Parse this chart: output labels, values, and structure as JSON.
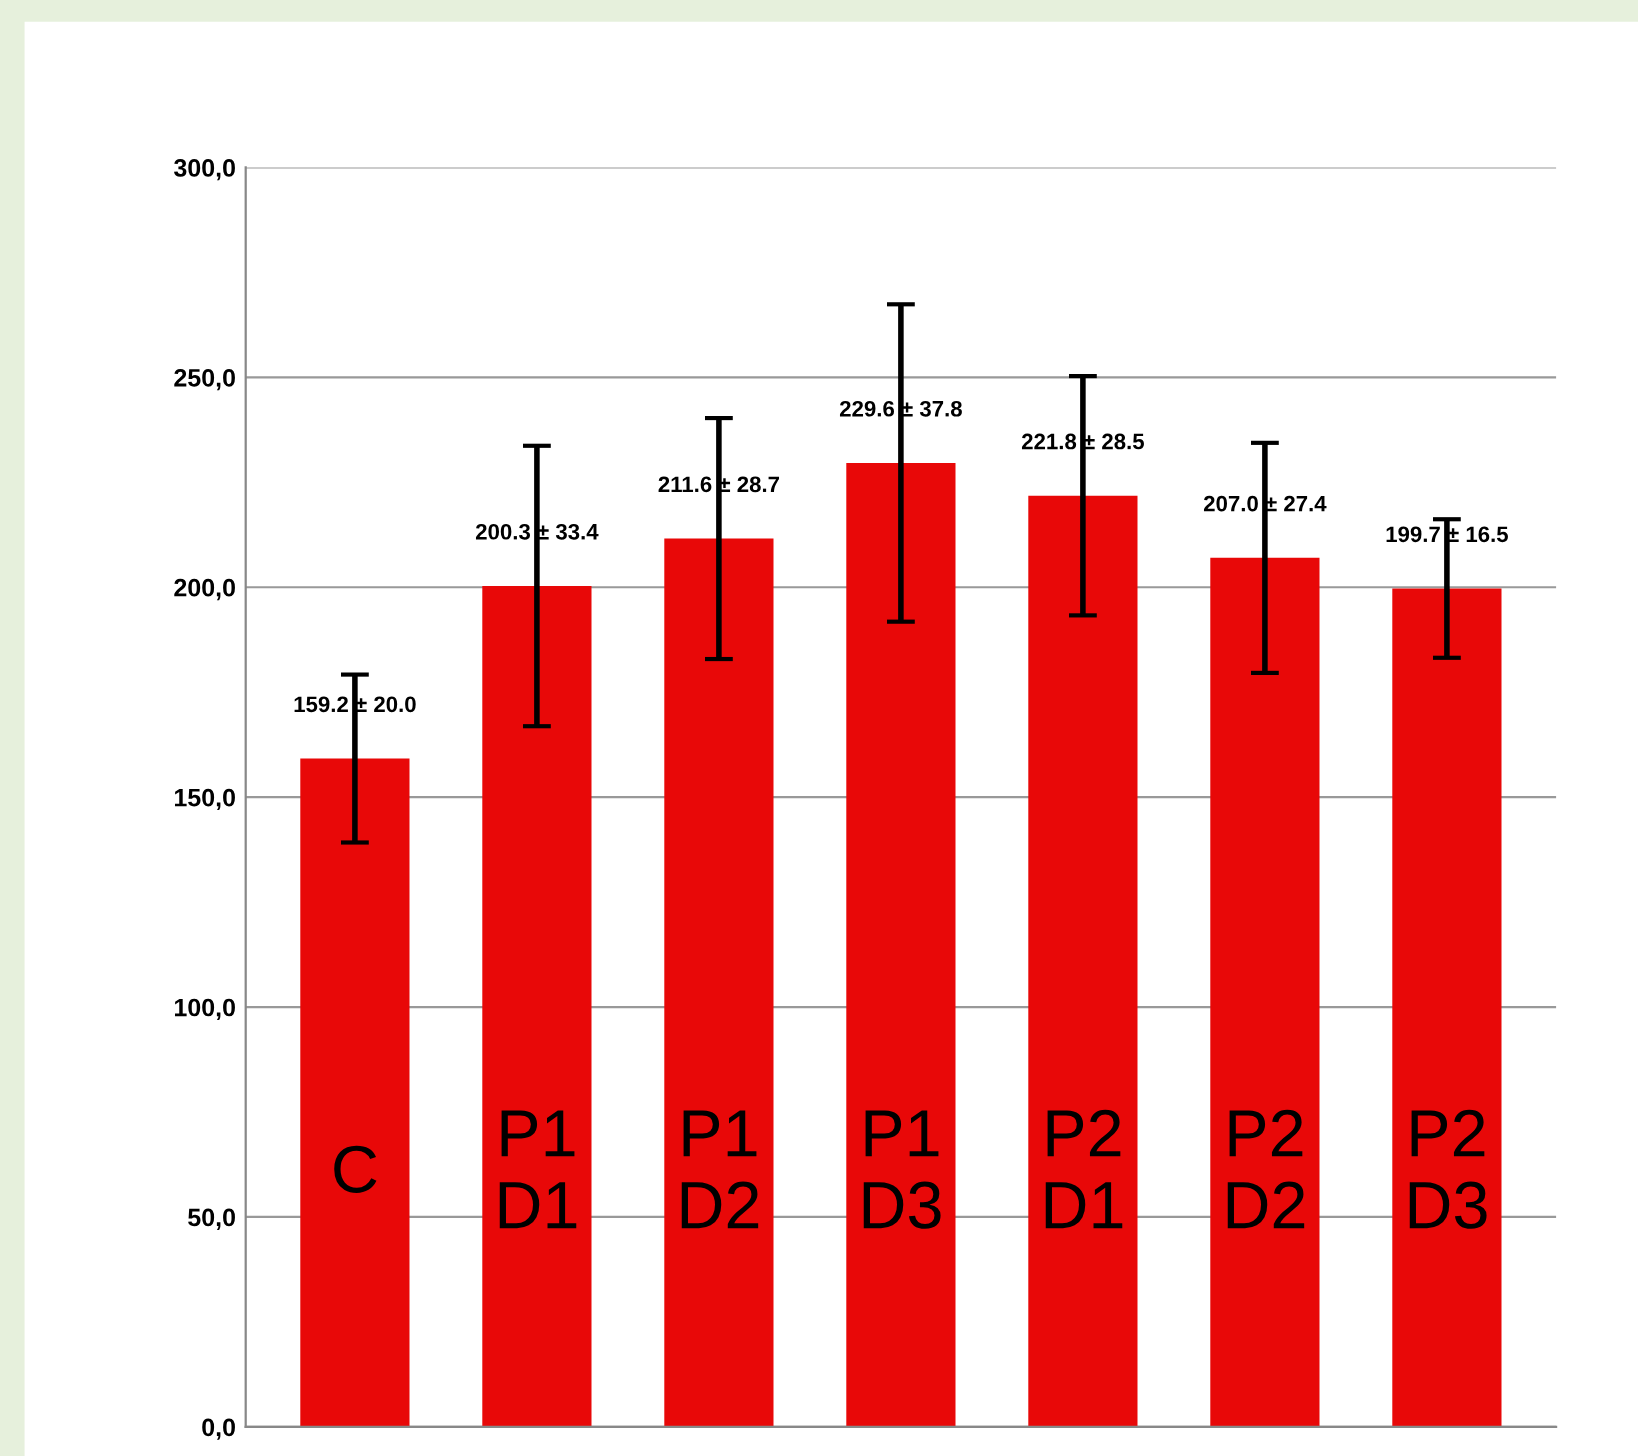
{
  "chart_data": {
    "type": "bar",
    "categories": [
      "C",
      "P1\nD1",
      "P1\nD2",
      "P1\nD3",
      "P2\nD1",
      "P2\nD2",
      "P2\nD3"
    ],
    "values": [
      159.2,
      200.3,
      211.6,
      229.6,
      221.8,
      207.0,
      199.7
    ],
    "errors": [
      20.0,
      33.4,
      28.7,
      37.8,
      28.5,
      27.4,
      16.5
    ],
    "value_labels": [
      "159.2 ± 20.0",
      "200.3 ± 33.4",
      "211.6 ± 28.7",
      "229.6 ± 37.8",
      "221.8 ± 28.5",
      "207.0 ± 27.4",
      "199.7 ± 16.5"
    ],
    "color": "#e80808",
    "ylim": [
      0,
      300
    ],
    "yticks": [
      {
        "value": 0,
        "label": "0,0"
      },
      {
        "value": 50,
        "label": "50,0"
      },
      {
        "value": 100,
        "label": "100,0"
      },
      {
        "value": 150,
        "label": "150,0"
      },
      {
        "value": 200,
        "label": "200,0"
      },
      {
        "value": 250,
        "label": "250,0"
      },
      {
        "value": 300,
        "label": "300,0"
      }
    ],
    "grid": "y",
    "legend": false
  }
}
